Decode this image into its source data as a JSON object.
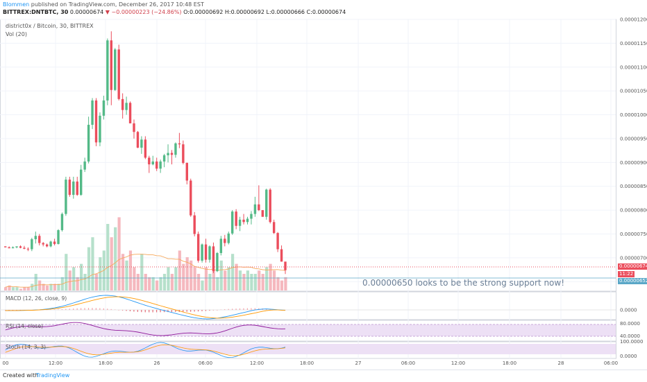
{
  "header": {
    "author": "Blommen",
    "published_text": "published on TradingView.com, December 26, 2017 10:48 EST",
    "symbol": "BITTREX:DNTBTC, 30",
    "last": "0.00000674",
    "change": "▼ −0.00000223 (−24.86%)",
    "ohlc_o_label": "O:",
    "ohlc_o": "0.00000692",
    "ohlc_h_label": "H:",
    "ohlc_h": "0.00000692",
    "ohlc_l_label": "L:",
    "ohlc_l": "0.00000666",
    "ohlc_c_label": "C:",
    "ohlc_c": "0.00000674"
  },
  "legend": {
    "series_title": "district0x / Bitcoin, 30, BITTREX",
    "volume_label": "Vol (20)"
  },
  "indicators": {
    "macd_label": "MACD (12, 26, close, 9)",
    "rsi_label": "RSI (14, close)",
    "stoch_label": "Stoch (14, 3, 3)"
  },
  "annotation": "0.00000650 looks to be the strong support now!",
  "price_tags": {
    "last_price": "0.00000674",
    "countdown": "11:22",
    "support_price": "0.00000652"
  },
  "footer": {
    "created_with": "Created with",
    "brand": "TradingView"
  },
  "colors": {
    "up": "#53b987",
    "down": "#eb4d5c",
    "vol_up": "#b6e0cb",
    "vol_down": "#f5b8be",
    "macd": "#2196f3",
    "signal": "#ff9800",
    "rsi": "#8e1599",
    "band": "#ede0f5"
  },
  "chart_data": {
    "type": "candlestick",
    "title": "district0x / Bitcoin, 30, BITTREX",
    "y_axis": {
      "ticks": [
        "0.00001200",
        "0.00001150",
        "0.00001100",
        "0.00001050",
        "0.00001000",
        "0.00000950",
        "0.00000900",
        "0.00000850",
        "0.00000800",
        "0.00000750",
        "0.00000700",
        "0.00000650"
      ],
      "ylim": [
        6.3e-06,
        1.2e-05
      ]
    },
    "x_axis": {
      "ticks": [
        "00",
        "12:00",
        "18:00",
        "26",
        "06:00",
        "12:00",
        "18:00",
        "27",
        "06:00",
        "12:00",
        "18:00",
        "28",
        "06:00"
      ]
    },
    "candles": [
      [
        7.24,
        7.24,
        7.22,
        7.22
      ],
      [
        7.22,
        7.24,
        7.2,
        7.2
      ],
      [
        7.2,
        7.24,
        7.2,
        7.22
      ],
      [
        7.22,
        7.24,
        7.2,
        7.24
      ],
      [
        7.24,
        7.26,
        7.2,
        7.21
      ],
      [
        7.21,
        7.25,
        7.18,
        7.19
      ],
      [
        7.19,
        7.22,
        7.14,
        7.18
      ],
      [
        7.18,
        7.42,
        7.14,
        7.39
      ],
      [
        7.39,
        7.55,
        7.3,
        7.46
      ],
      [
        7.46,
        7.5,
        7.26,
        7.31
      ],
      [
        7.31,
        7.33,
        7.24,
        7.28
      ],
      [
        7.28,
        7.3,
        7.22,
        7.24
      ],
      [
        7.24,
        7.36,
        7.22,
        7.34
      ],
      [
        7.34,
        7.4,
        7.26,
        7.29
      ],
      [
        7.29,
        7.6,
        7.28,
        7.58
      ],
      [
        7.58,
        7.95,
        7.55,
        7.92
      ],
      [
        7.92,
        8.7,
        7.88,
        8.64
      ],
      [
        8.64,
        8.7,
        8.28,
        8.32
      ],
      [
        8.32,
        8.7,
        8.24,
        8.6
      ],
      [
        8.6,
        8.7,
        8.3,
        8.32
      ],
      [
        8.32,
        8.95,
        8.3,
        8.85
      ],
      [
        8.85,
        9.1,
        8.8,
        9.02
      ],
      [
        9.02,
        9.96,
        8.98,
        9.79
      ],
      [
        9.79,
        10.35,
        9.7,
        10.3
      ],
      [
        10.3,
        10.35,
        9.34,
        9.42
      ],
      [
        9.42,
        10.05,
        9.34,
        9.98
      ],
      [
        9.98,
        10.4,
        9.9,
        10.3
      ],
      [
        10.3,
        11.6,
        10.2,
        11.56
      ],
      [
        11.56,
        11.75,
        10.2,
        10.52
      ],
      [
        10.52,
        11.4,
        10.5,
        11.37
      ],
      [
        11.37,
        11.47,
        10.3,
        10.33
      ],
      [
        10.33,
        10.45,
        9.92,
        10.1
      ],
      [
        10.1,
        10.38,
        10.0,
        10.25
      ],
      [
        10.25,
        10.28,
        9.82,
        9.82
      ],
      [
        9.82,
        9.9,
        9.5,
        9.64
      ],
      [
        9.64,
        9.66,
        9.3,
        9.31
      ],
      [
        9.31,
        9.55,
        9.18,
        9.48
      ],
      [
        9.48,
        9.55,
        9.07,
        9.1
      ],
      [
        9.1,
        9.14,
        8.78,
        8.96
      ],
      [
        8.96,
        9.14,
        8.94,
        9.02
      ],
      [
        9.02,
        9.1,
        8.82,
        8.87
      ],
      [
        8.87,
        9.06,
        8.78,
        9.02
      ],
      [
        9.02,
        9.18,
        8.9,
        9.15
      ],
      [
        9.15,
        9.38,
        9.0,
        9.2
      ],
      [
        9.2,
        9.26,
        8.96,
        9.16
      ],
      [
        9.16,
        9.42,
        9.1,
        9.4
      ],
      [
        9.4,
        9.62,
        9.3,
        9.38
      ],
      [
        9.38,
        9.46,
        8.96,
        8.99
      ],
      [
        8.99,
        9.0,
        8.54,
        8.62
      ],
      [
        8.62,
        8.66,
        7.86,
        7.89
      ],
      [
        7.89,
        7.96,
        7.45,
        7.5
      ],
      [
        7.5,
        7.55,
        6.9,
        6.94
      ],
      [
        6.94,
        7.3,
        6.9,
        7.28
      ],
      [
        7.28,
        7.4,
        6.9,
        6.96
      ],
      [
        6.96,
        7.26,
        6.9,
        7.24
      ],
      [
        7.24,
        7.32,
        6.68,
        6.72
      ],
      [
        6.72,
        7.12,
        6.7,
        7.1
      ],
      [
        7.1,
        7.46,
        7.05,
        7.4
      ],
      [
        7.4,
        7.48,
        7.24,
        7.31
      ],
      [
        7.31,
        7.55,
        7.28,
        7.51
      ],
      [
        7.51,
        8.0,
        7.48,
        7.97
      ],
      [
        7.97,
        8.02,
        7.6,
        7.67
      ],
      [
        7.67,
        7.86,
        7.56,
        7.8
      ],
      [
        7.8,
        7.92,
        7.7,
        7.75
      ],
      [
        7.75,
        7.86,
        7.7,
        7.82
      ],
      [
        7.82,
        7.98,
        7.7,
        7.92
      ],
      [
        7.92,
        8.28,
        7.86,
        8.12
      ],
      [
        8.12,
        8.52,
        7.98,
        8.0
      ],
      [
        8.0,
        8.0,
        7.86,
        7.86
      ],
      [
        7.86,
        8.45,
        7.8,
        8.43
      ],
      [
        8.43,
        8.46,
        7.72,
        7.75
      ],
      [
        7.75,
        7.8,
        7.5,
        7.52
      ],
      [
        7.52,
        7.54,
        7.12,
        7.18
      ],
      [
        7.18,
        7.26,
        6.92,
        6.92
      ],
      [
        6.92,
        6.92,
        6.66,
        6.74
      ]
    ],
    "volume": [
      2,
      3,
      2,
      2,
      1,
      2,
      2,
      4,
      10,
      6,
      4,
      3,
      4,
      4,
      4,
      8,
      22,
      12,
      14,
      8,
      16,
      10,
      26,
      32,
      10,
      20,
      24,
      40,
      32,
      38,
      44,
      22,
      18,
      24,
      14,
      10,
      22,
      10,
      8,
      8,
      6,
      8,
      10,
      14,
      10,
      14,
      24,
      16,
      20,
      18,
      14,
      10,
      6,
      14,
      10,
      12,
      8,
      18,
      12,
      14,
      22,
      16,
      12,
      10,
      12,
      10,
      10,
      12,
      10,
      14,
      16,
      12,
      8,
      6,
      8
    ]
  }
}
